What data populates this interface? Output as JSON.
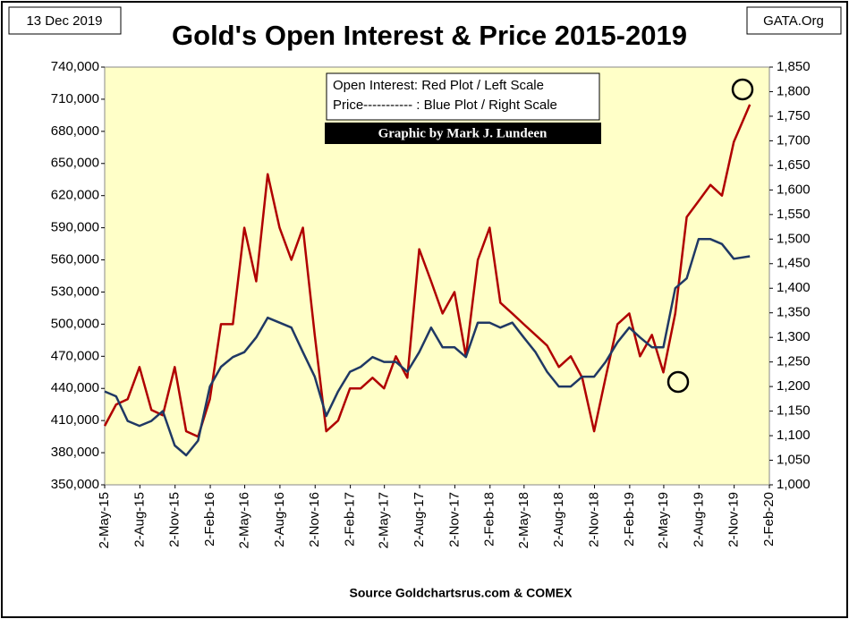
{
  "chart_data": {
    "type": "line",
    "title": "Gold's Open Interest & Price 2015-2019",
    "date_stamp": "13 Dec 2019",
    "site": "GATA.Org",
    "legend_lines": [
      "Open Interest:  Red Plot / Left Scale",
      "Price----------- : Blue Plot / Right Scale"
    ],
    "credit": "Graphic by Mark J. Lundeen",
    "source": "Source Goldchartsrus.com & COMEX",
    "x": [
      "2015-05-02",
      "2015-06-01",
      "2015-07-01",
      "2015-08-01",
      "2015-09-01",
      "2015-10-01",
      "2015-11-01",
      "2015-12-01",
      "2016-01-01",
      "2016-02-01",
      "2016-03-01",
      "2016-04-01",
      "2016-05-01",
      "2016-06-01",
      "2016-07-01",
      "2016-08-01",
      "2016-09-01",
      "2016-10-01",
      "2016-11-01",
      "2016-12-01",
      "2017-01-01",
      "2017-02-01",
      "2017-03-01",
      "2017-04-01",
      "2017-05-01",
      "2017-06-01",
      "2017-07-01",
      "2017-08-01",
      "2017-09-01",
      "2017-10-01",
      "2017-11-01",
      "2017-12-01",
      "2018-01-01",
      "2018-02-01",
      "2018-03-01",
      "2018-04-01",
      "2018-05-01",
      "2018-06-01",
      "2018-07-01",
      "2018-08-01",
      "2018-09-01",
      "2018-10-01",
      "2018-11-01",
      "2018-12-01",
      "2019-01-01",
      "2019-02-01",
      "2019-03-01",
      "2019-04-01",
      "2019-05-01",
      "2019-06-01",
      "2019-07-01",
      "2019-08-01",
      "2019-09-01",
      "2019-10-01",
      "2019-11-01",
      "2019-12-13"
    ],
    "series": [
      {
        "name": "Open Interest",
        "color": "#b00000",
        "axis": "y",
        "values": [
          405000,
          425000,
          430000,
          460000,
          420000,
          415000,
          460000,
          400000,
          395000,
          430000,
          500000,
          500000,
          590000,
          540000,
          640000,
          590000,
          560000,
          590000,
          490000,
          400000,
          410000,
          440000,
          440000,
          450000,
          440000,
          470000,
          450000,
          570000,
          540000,
          510000,
          530000,
          470000,
          560000,
          590000,
          520000,
          510000,
          500000,
          490000,
          480000,
          460000,
          470000,
          450000,
          400000,
          450000,
          500000,
          510000,
          470000,
          490000,
          455000,
          510000,
          600000,
          615000,
          630000,
          620000,
          670000,
          705000
        ]
      },
      {
        "name": "Price",
        "color": "#1f3864",
        "axis": "y2",
        "values": [
          1190,
          1180,
          1130,
          1120,
          1130,
          1150,
          1080,
          1060,
          1090,
          1200,
          1240,
          1260,
          1270,
          1300,
          1340,
          1330,
          1320,
          1270,
          1220,
          1140,
          1190,
          1230,
          1240,
          1260,
          1250,
          1250,
          1230,
          1270,
          1320,
          1280,
          1280,
          1260,
          1330,
          1330,
          1320,
          1330,
          1300,
          1270,
          1230,
          1200,
          1200,
          1220,
          1220,
          1250,
          1290,
          1320,
          1300,
          1280,
          1280,
          1400,
          1420,
          1500,
          1500,
          1490,
          1460,
          1465
        ]
      }
    ],
    "xlim": [
      "2015-05-02",
      "2020-02-02"
    ],
    "xticks": [
      {
        "value": "2015-05-02",
        "label": "2-May-15"
      },
      {
        "value": "2015-08-02",
        "label": "2-Aug-15"
      },
      {
        "value": "2015-11-02",
        "label": "2-Nov-15"
      },
      {
        "value": "2016-02-02",
        "label": "2-Feb-16"
      },
      {
        "value": "2016-05-02",
        "label": "2-May-16"
      },
      {
        "value": "2016-08-02",
        "label": "2-Aug-16"
      },
      {
        "value": "2016-11-02",
        "label": "2-Nov-16"
      },
      {
        "value": "2017-02-02",
        "label": "2-Feb-17"
      },
      {
        "value": "2017-05-02",
        "label": "2-May-17"
      },
      {
        "value": "2017-08-02",
        "label": "2-Aug-17"
      },
      {
        "value": "2017-11-02",
        "label": "2-Nov-17"
      },
      {
        "value": "2018-02-02",
        "label": "2-Feb-18"
      },
      {
        "value": "2018-05-02",
        "label": "2-May-18"
      },
      {
        "value": "2018-08-02",
        "label": "2-Aug-18"
      },
      {
        "value": "2018-11-02",
        "label": "2-Nov-18"
      },
      {
        "value": "2019-02-02",
        "label": "2-Feb-19"
      },
      {
        "value": "2019-05-02",
        "label": "2-May-19"
      },
      {
        "value": "2019-08-02",
        "label": "2-Aug-19"
      },
      {
        "value": "2019-11-02",
        "label": "2-Nov-19"
      },
      {
        "value": "2020-02-02",
        "label": "2-Feb-20"
      }
    ],
    "ylim": [
      350000,
      740000
    ],
    "yticks": [
      {
        "value": 350000,
        "label": "350,000"
      },
      {
        "value": 380000,
        "label": "380,000"
      },
      {
        "value": 410000,
        "label": "410,000"
      },
      {
        "value": 440000,
        "label": "440,000"
      },
      {
        "value": 470000,
        "label": "470,000"
      },
      {
        "value": 500000,
        "label": "500,000"
      },
      {
        "value": 530000,
        "label": "530,000"
      },
      {
        "value": 560000,
        "label": "560,000"
      },
      {
        "value": 590000,
        "label": "590,000"
      },
      {
        "value": 620000,
        "label": "620,000"
      },
      {
        "value": 650000,
        "label": "650,000"
      },
      {
        "value": 680000,
        "label": "680,000"
      },
      {
        "value": 710000,
        "label": "710,000"
      },
      {
        "value": 740000,
        "label": "740,000"
      }
    ],
    "y2lim": [
      1000,
      1850
    ],
    "y2ticks": [
      {
        "value": 1000,
        "label": "1,000"
      },
      {
        "value": 1050,
        "label": "1,050"
      },
      {
        "value": 1100,
        "label": "1,100"
      },
      {
        "value": 1150,
        "label": "1,150"
      },
      {
        "value": 1200,
        "label": "1,200"
      },
      {
        "value": 1250,
        "label": "1,250"
      },
      {
        "value": 1300,
        "label": "1,300"
      },
      {
        "value": 1350,
        "label": "1,350"
      },
      {
        "value": 1400,
        "label": "1,400"
      },
      {
        "value": 1450,
        "label": "1,450"
      },
      {
        "value": 1500,
        "label": "1,500"
      },
      {
        "value": 1550,
        "label": "1,550"
      },
      {
        "value": 1600,
        "label": "1,600"
      },
      {
        "value": 1650,
        "label": "1,650"
      },
      {
        "value": 1700,
        "label": "1,700"
      },
      {
        "value": 1750,
        "label": "1,750"
      },
      {
        "value": 1800,
        "label": "1,800"
      },
      {
        "value": 1850,
        "label": "1,850"
      }
    ],
    "grid": false,
    "background": "#ffffc8"
  }
}
